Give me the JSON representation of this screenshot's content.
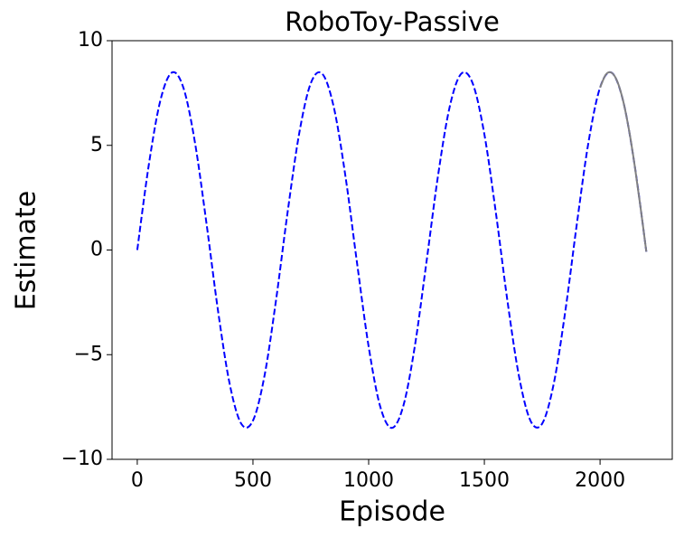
{
  "chart_data": {
    "type": "line",
    "title": "RoboToy-Passive",
    "x_label": "Episode",
    "y_label": "Estimate",
    "series": [
      {
        "color": "#0000ff",
        "style": "dashed",
        "x": [
          0,
          50,
          100,
          150,
          200,
          250,
          300,
          350,
          400,
          450,
          500,
          550,
          600,
          650,
          700,
          750,
          800,
          850,
          900,
          950,
          1000,
          1050,
          1100,
          1150,
          1200,
          1250,
          1300,
          1350,
          1400,
          1450,
          1500,
          1550,
          1600,
          1650,
          1700,
          1750,
          1800,
          1850,
          1900,
          1950,
          2000,
          2050,
          2100,
          2150,
          2200
        ],
        "values": [
          0,
          4.08,
          7.15,
          8.48,
          7.73,
          5.09,
          1.2,
          -2.98,
          -6.43,
          -8.31,
          -8.15,
          -6.0,
          -2.37,
          1.83,
          5.58,
          7.97,
          8.41,
          6.79,
          3.5,
          -0.64,
          -4.62,
          -7.48,
          -8.5,
          -7.44,
          -4.56,
          -0.56,
          3.57,
          6.83,
          8.42,
          7.95,
          5.53,
          1.76,
          -2.45,
          -6.05,
          -8.17,
          -8.29,
          -6.38,
          -2.91,
          1.27,
          5.15,
          7.76,
          8.47,
          7.11,
          4.01,
          -0.08
        ]
      },
      {
        "color": "#808080",
        "style": "solid",
        "x": [
          2000,
          2025,
          2050,
          2075,
          2100,
          2125,
          2150,
          2175,
          2200
        ],
        "values": [
          7.76,
          8.38,
          8.47,
          8.04,
          7.11,
          5.74,
          4.01,
          2.03,
          -0.08
        ]
      }
    ],
    "xlim": [
      -109,
      2312
    ],
    "xticks": [
      0,
      500,
      1000,
      1500,
      2000
    ],
    "ylim": [
      -10,
      10
    ],
    "yticks": [
      {
        "value": -10,
        "label": "−10"
      },
      {
        "value": -5,
        "label": "−5"
      },
      0,
      5,
      10
    ],
    "grid": false
  }
}
